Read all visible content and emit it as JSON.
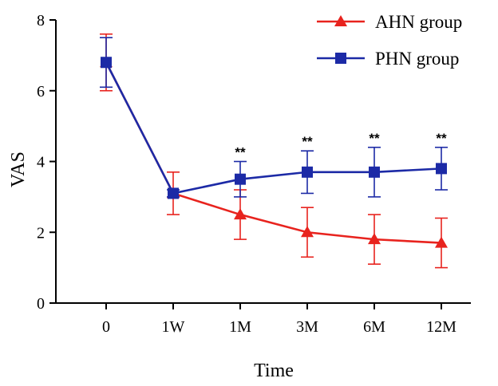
{
  "chart_data": {
    "type": "line",
    "title": "",
    "xlabel": "Time",
    "ylabel": "VAS",
    "categories": [
      "0",
      "1W",
      "1M",
      "3M",
      "6M",
      "12M"
    ],
    "ylim": [
      0,
      8
    ],
    "yticks": [
      "0",
      "2",
      "4",
      "6",
      "8"
    ],
    "legend_position": "top-right",
    "series": [
      {
        "name": "AHN group",
        "color": "#e8231e",
        "marker": "triangle",
        "values": [
          6.8,
          3.1,
          2.5,
          2.0,
          1.8,
          1.7
        ],
        "error": [
          0.8,
          0.6,
          0.7,
          0.7,
          0.7,
          0.7
        ]
      },
      {
        "name": "PHN group",
        "color": "#1c2aa6",
        "marker": "square",
        "values": [
          6.8,
          3.1,
          3.5,
          3.7,
          3.7,
          3.8
        ],
        "error": [
          0.7,
          0.1,
          0.5,
          0.6,
          0.7,
          0.6
        ]
      }
    ],
    "annotations": [
      {
        "category": "1M",
        "text": "**"
      },
      {
        "category": "3M",
        "text": "**"
      },
      {
        "category": "6M",
        "text": "**"
      },
      {
        "category": "12M",
        "text": "**"
      }
    ]
  }
}
